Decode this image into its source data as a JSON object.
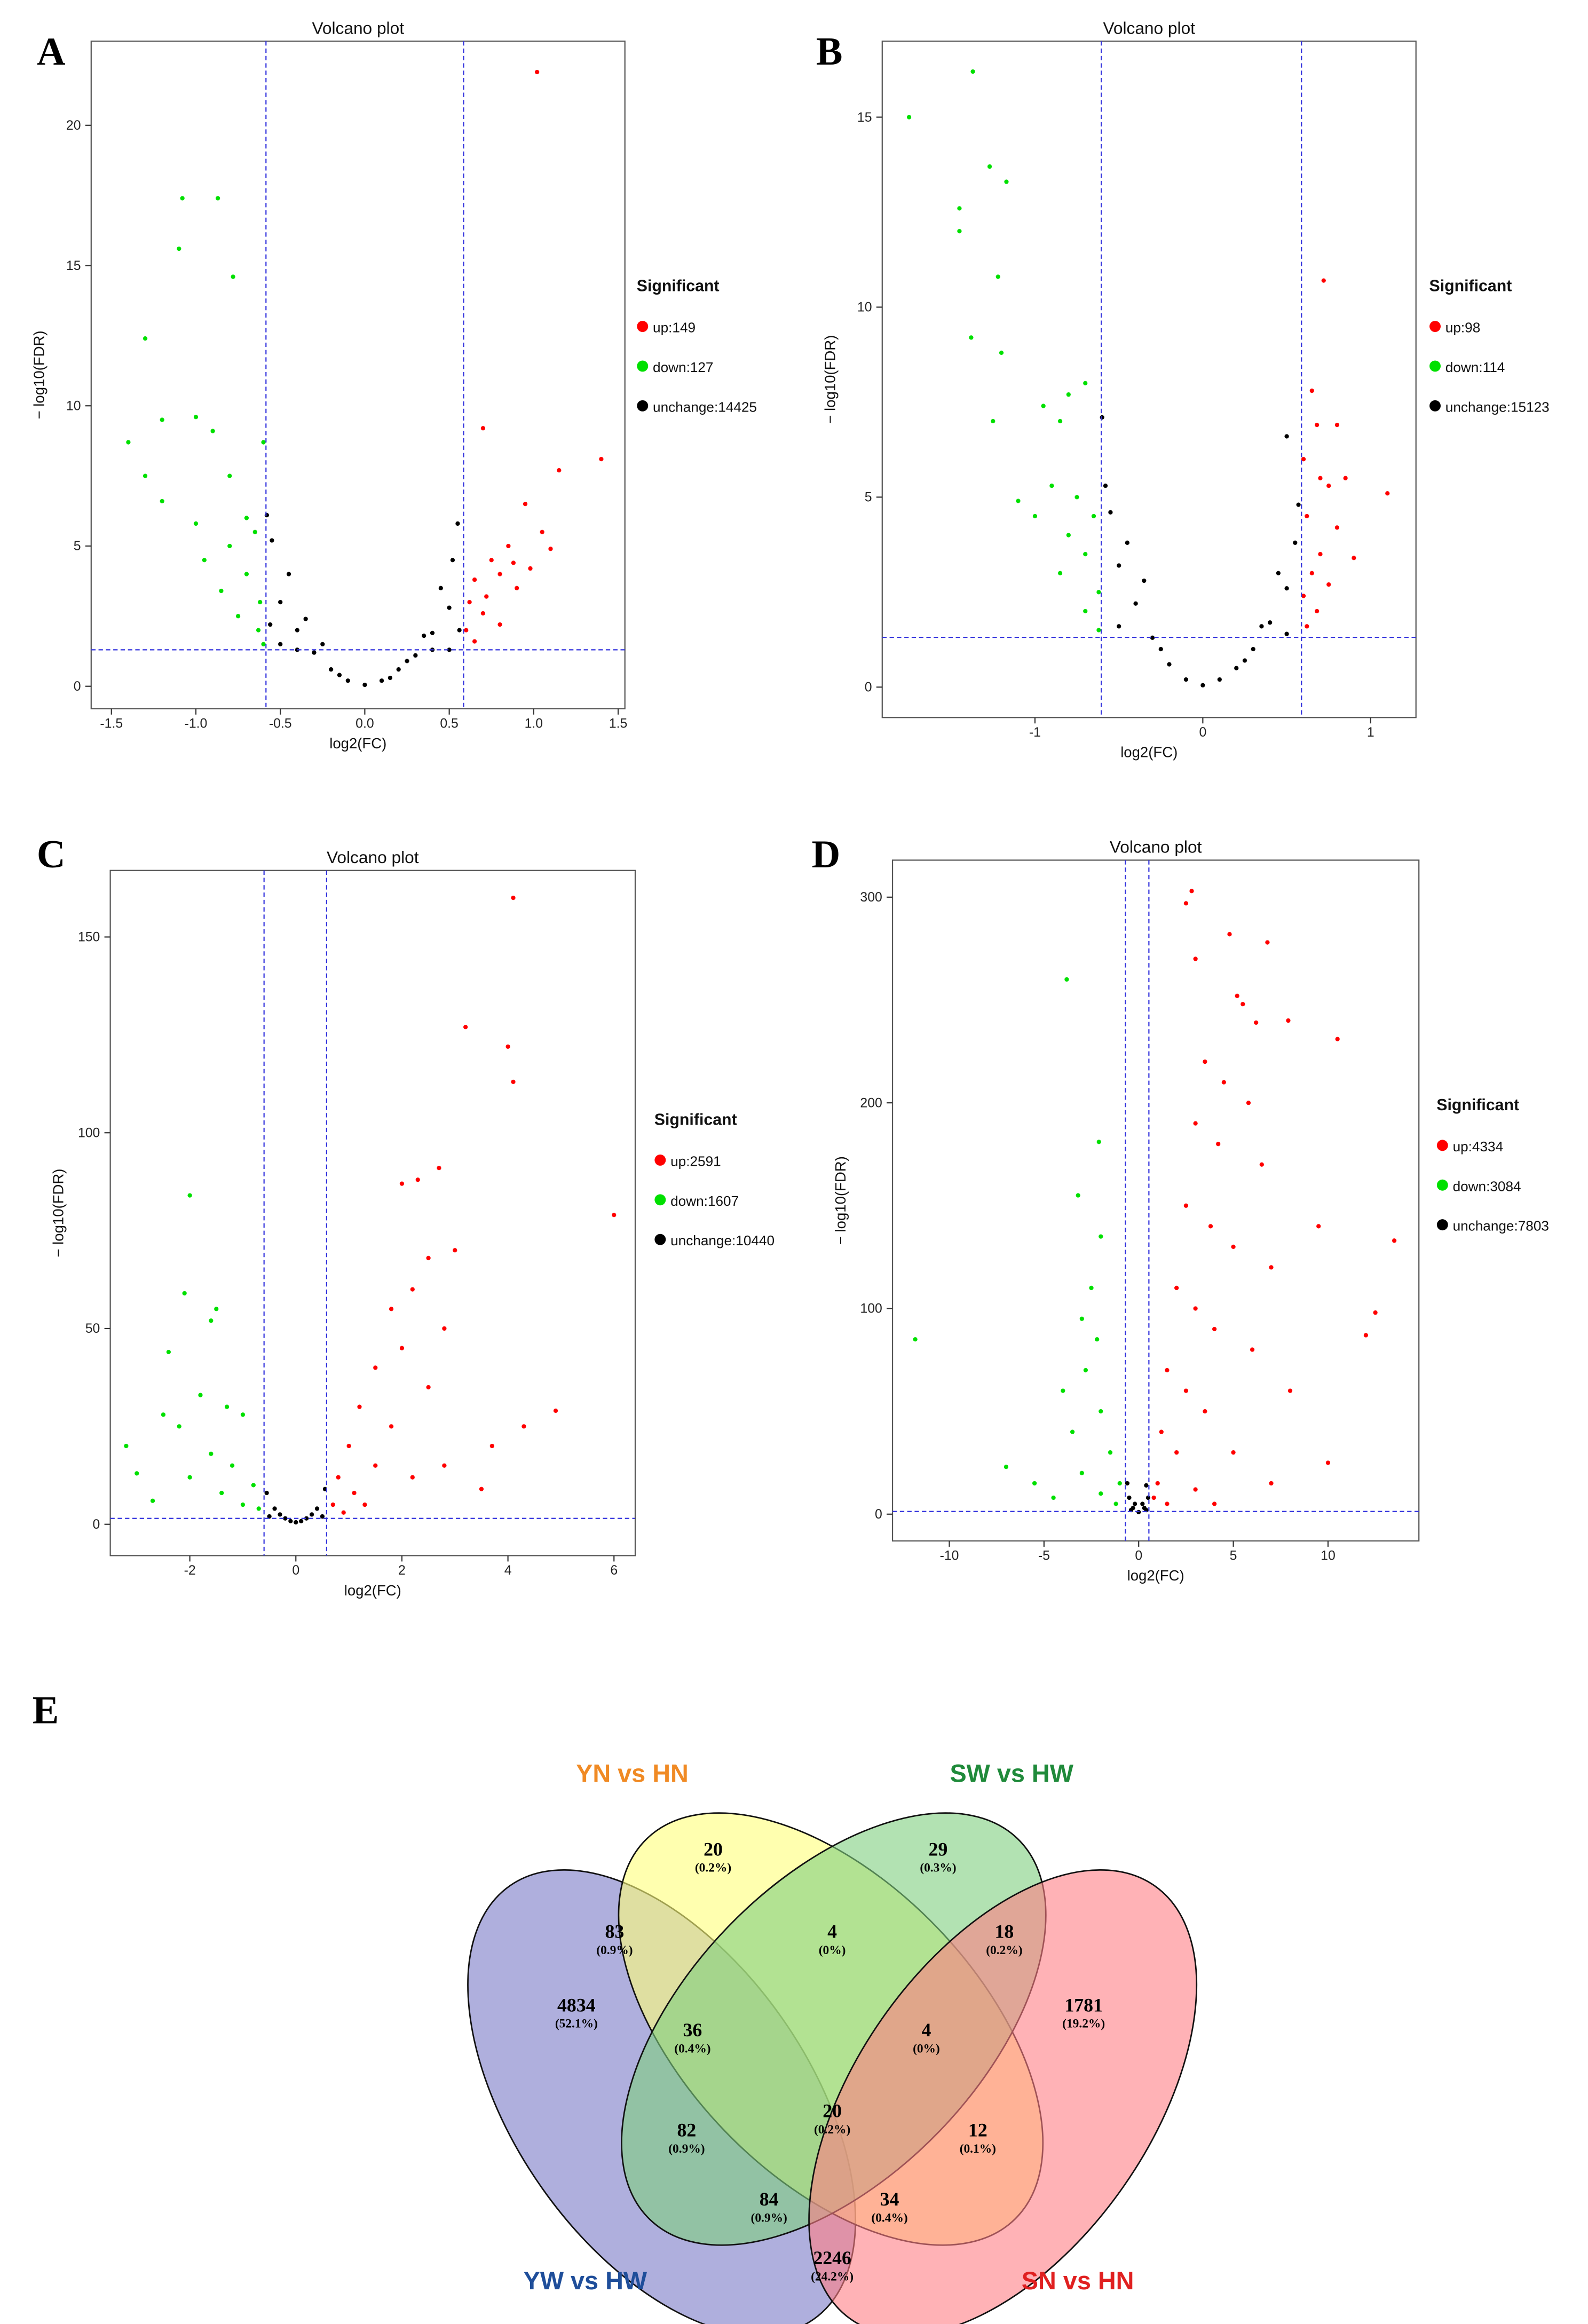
{
  "chart_data": [
    {
      "type": "scatter",
      "panel": "A",
      "title": "Volcano plot",
      "xlabel": "log2(FC)",
      "ylabel": "− log10(FDR)",
      "xlim": [
        -1.62,
        1.54
      ],
      "ylim": [
        -0.8,
        23
      ],
      "xticks": [
        -1.5,
        {
          "value": -1,
          "label": "-1.0"
        },
        -0.5,
        {
          "value": 0,
          "label": "0.0"
        },
        0.5,
        {
          "value": 1,
          "label": "1.0"
        },
        1.5
      ],
      "yticks": [
        0,
        5,
        10,
        15,
        20
      ],
      "thresholds": {
        "x": [
          -0.585,
          0.585
        ],
        "y": 1.3
      },
      "legend_title": "Significant",
      "series": [
        {
          "name": "up:149",
          "color": "#ff0000",
          "x": [
            1.02,
            0.7,
            1.4,
            1.15,
            0.95,
            1.05,
            0.85,
            1.1,
            0.75,
            0.8,
            0.65,
            0.9,
            0.62,
            0.7,
            0.6,
            0.65,
            0.8,
            0.98,
            0.88,
            0.72
          ],
          "y": [
            21.9,
            9.2,
            8.1,
            7.7,
            6.5,
            5.5,
            5.0,
            4.9,
            4.5,
            4.0,
            3.8,
            3.5,
            3.0,
            2.6,
            2.0,
            1.6,
            2.2,
            4.2,
            4.4,
            3.2
          ]
        },
        {
          "name": "down:127",
          "color": "#00e000",
          "x": [
            -1.08,
            -0.87,
            -1.1,
            -0.78,
            -1.3,
            -1.0,
            -1.2,
            -0.6,
            -1.4,
            -1.3,
            -0.9,
            -0.8,
            -1.2,
            -0.7,
            -1.0,
            -0.65,
            -0.8,
            -0.95,
            -0.7,
            -0.85,
            -0.62,
            -0.75,
            -0.63,
            -0.6
          ],
          "y": [
            17.4,
            17.4,
            15.6,
            14.6,
            12.4,
            9.6,
            9.5,
            8.7,
            8.7,
            7.5,
            9.1,
            7.5,
            6.6,
            6.0,
            5.8,
            5.5,
            5.0,
            4.5,
            4.0,
            3.4,
            3.0,
            2.5,
            2.0,
            1.5
          ]
        },
        {
          "name": "unchange:14425",
          "color": "#000000",
          "x": [
            0,
            -0.1,
            0.1,
            -0.2,
            0.2,
            -0.3,
            0.3,
            -0.4,
            0.4,
            -0.5,
            0.5,
            -0.55,
            0.52,
            -0.45,
            0.45,
            -0.58,
            0.55,
            -0.35,
            0.35,
            -0.25,
            0.25,
            -0.5,
            0.5,
            -0.15,
            0.15,
            -0.4,
            0.4,
            -0.56,
            0.56
          ],
          "y": [
            0.05,
            0.2,
            0.2,
            0.6,
            0.6,
            1.2,
            1.1,
            2.0,
            1.9,
            3.0,
            2.8,
            5.2,
            4.5,
            4.0,
            3.5,
            6.1,
            5.8,
            2.4,
            1.8,
            1.5,
            0.9,
            1.5,
            1.3,
            0.4,
            0.3,
            1.3,
            1.3,
            2.2,
            2.0
          ]
        }
      ]
    },
    {
      "type": "scatter",
      "panel": "B",
      "title": "Volcano plot",
      "xlabel": "log2(FC)",
      "ylabel": "− log10(FDR)",
      "xlim": [
        -1.91,
        1.27
      ],
      "ylim": [
        -0.8,
        17
      ],
      "xticks": [
        -1,
        0,
        1
      ],
      "yticks": [
        0,
        5,
        10,
        15
      ],
      "thresholds": {
        "x": [
          -0.605,
          0.588
        ],
        "y": 1.31
      },
      "legend_title": "Significant",
      "series": [
        {
          "name": "up:98",
          "color": "#ff0000",
          "x": [
            0.72,
            0.65,
            0.68,
            0.8,
            0.6,
            0.7,
            0.85,
            1.1,
            0.75,
            0.62,
            0.8,
            0.7,
            0.65,
            0.9,
            0.6,
            0.75,
            0.62,
            0.68
          ],
          "y": [
            10.7,
            7.8,
            6.9,
            6.9,
            6.0,
            5.5,
            5.5,
            5.1,
            5.3,
            4.5,
            4.2,
            3.5,
            3.0,
            3.4,
            2.4,
            2.7,
            1.6,
            2.0
          ]
        },
        {
          "name": "down:114",
          "color": "#00e000",
          "x": [
            -1.37,
            -1.75,
            -1.27,
            -1.17,
            -1.45,
            -1.45,
            -1.22,
            -1.38,
            -1.2,
            -0.8,
            -0.7,
            -0.95,
            -1.25,
            -0.85,
            -1.1,
            -0.9,
            -0.75,
            -1.0,
            -0.8,
            -0.65,
            -0.7,
            -0.85,
            -0.62,
            -0.7,
            -0.62
          ],
          "y": [
            16.2,
            15.0,
            13.7,
            13.3,
            12.6,
            12.0,
            10.8,
            9.2,
            8.8,
            7.7,
            8.0,
            7.4,
            7.0,
            7.0,
            4.9,
            5.3,
            5.0,
            4.5,
            4.0,
            4.5,
            3.5,
            3.0,
            2.5,
            2.0,
            1.5
          ]
        },
        {
          "name": "unchange:15123",
          "color": "#000000",
          "x": [
            0.5,
            -0.6,
            0,
            -0.1,
            0.1,
            -0.2,
            0.2,
            -0.3,
            0.3,
            -0.4,
            0.4,
            -0.5,
            0.5,
            -0.55,
            0.55,
            -0.45,
            0.45,
            -0.58,
            0.57,
            -0.35,
            0.35,
            -0.5,
            0.5,
            -0.25,
            0.25
          ],
          "y": [
            6.6,
            7.1,
            0.05,
            0.2,
            0.2,
            0.6,
            0.5,
            1.3,
            1.0,
            2.2,
            1.7,
            3.2,
            2.6,
            4.6,
            3.8,
            3.8,
            3.0,
            5.3,
            4.8,
            2.8,
            1.6,
            1.6,
            1.4,
            1.0,
            0.7
          ]
        }
      ]
    },
    {
      "type": "scatter",
      "panel": "C",
      "title": "Volcano plot",
      "xlabel": "log2(FC)",
      "ylabel": "− log10(FDR)",
      "xlim": [
        -3.5,
        6.4
      ],
      "ylim": [
        -8,
        167
      ],
      "xticks": [
        -2,
        0,
        2,
        4,
        6
      ],
      "yticks": [
        0,
        50,
        100,
        150
      ],
      "thresholds": {
        "x": [
          -0.6,
          0.58
        ],
        "y": 1.5
      },
      "legend_title": "Significant",
      "series": [
        {
          "name": "up:2591",
          "color": "#ff0000",
          "x": [
            4.1,
            3.2,
            4.0,
            4.1,
            6.0,
            2.7,
            2.3,
            2.0,
            3.0,
            2.5,
            2.2,
            1.8,
            2.8,
            4.9,
            4.3,
            3.7,
            2.0,
            1.5,
            2.5,
            1.2,
            1.8,
            1.0,
            1.5,
            0.8,
            1.1,
            2.2,
            0.7,
            1.3,
            2.8,
            0.9,
            3.5
          ],
          "y": [
            160,
            127,
            122,
            113,
            79,
            91,
            88,
            87,
            70,
            68,
            60,
            55,
            50,
            29,
            25,
            20,
            45,
            40,
            35,
            30,
            25,
            20,
            15,
            12,
            8,
            12,
            5,
            5,
            15,
            3,
            9
          ]
        },
        {
          "name": "down:1607",
          "color": "#00e000",
          "x": [
            -2.0,
            -2.1,
            -1.5,
            -1.6,
            -2.4,
            -3.2,
            -3.0,
            -2.5,
            -1.8,
            -1.3,
            -1.0,
            -2.2,
            -1.6,
            -1.2,
            -2.0,
            -0.8,
            -1.4,
            -0.7,
            -1.0,
            -2.7
          ],
          "y": [
            84,
            59,
            55,
            52,
            44,
            20,
            13,
            28,
            33,
            30,
            28,
            25,
            18,
            15,
            12,
            10,
            8,
            4,
            5,
            6
          ]
        },
        {
          "name": "unchange:10440",
          "color": "#000000",
          "x": [
            0,
            -0.2,
            0.2,
            -0.4,
            0.4,
            -0.55,
            0.55,
            -0.3,
            0.3,
            -0.5,
            0.5,
            -0.1,
            0.1
          ],
          "y": [
            0.5,
            1.5,
            1.5,
            4,
            4,
            8,
            9,
            2.5,
            2.5,
            2,
            2,
            0.8,
            0.8
          ]
        }
      ]
    },
    {
      "type": "scatter",
      "panel": "D",
      "title": "Volcano plot",
      "xlabel": "log2(FC)",
      "ylabel": "− log10(FDR)",
      "xlim": [
        -13,
        14.8
      ],
      "ylim": [
        -13,
        318
      ],
      "xticks": [
        -10,
        -5,
        0,
        5,
        10
      ],
      "yticks": [
        0,
        100,
        200,
        300
      ],
      "thresholds": {
        "x": [
          -0.7,
          0.54
        ],
        "y": 1.3
      },
      "legend_title": "Significant",
      "series": [
        {
          "name": "up:4334",
          "color": "#ff0000",
          "x": [
            2.8,
            2.5,
            4.8,
            6.8,
            3.0,
            5.2,
            5.5,
            7.9,
            6.2,
            10.5,
            3.5,
            4.5,
            5.8,
            3.0,
            4.2,
            6.5,
            9.5,
            13.5,
            2.5,
            3.8,
            5.0,
            7.0,
            2.0,
            3.0,
            4.0,
            12.5,
            12.0,
            6.0,
            1.5,
            2.5,
            8.0,
            3.5,
            1.2,
            2.0,
            5.0,
            10.0,
            1.0,
            3.0,
            7.0,
            1.5,
            4.0,
            0.8
          ],
          "y": [
            303,
            297,
            282,
            278,
            270,
            252,
            248,
            240,
            239,
            231,
            220,
            210,
            200,
            190,
            180,
            170,
            140,
            133,
            150,
            140,
            130,
            120,
            110,
            100,
            90,
            98,
            87,
            80,
            70,
            60,
            60,
            50,
            40,
            30,
            30,
            25,
            15,
            12,
            15,
            5,
            5,
            8
          ]
        },
        {
          "name": "down:3084",
          "color": "#00e000",
          "x": [
            -3.8,
            -2.1,
            -3.2,
            -2.0,
            -11.8,
            -2.5,
            -3.0,
            -2.2,
            -4.0,
            -2.8,
            -3.5,
            -2.0,
            -7.0,
            -5.5,
            -1.5,
            -3.0,
            -2.0,
            -1.2,
            -4.5,
            -1.0
          ],
          "y": [
            260,
            181,
            155,
            135,
            85,
            110,
            95,
            85,
            60,
            70,
            40,
            50,
            23,
            15,
            30,
            20,
            10,
            5,
            8,
            15
          ]
        },
        {
          "name": "unchange:7803",
          "color": "#000000",
          "x": [
            0,
            -0.3,
            0.3,
            -0.5,
            0.5,
            -0.6,
            0.4,
            -0.2,
            0.2,
            -0.4,
            0.4
          ],
          "y": [
            1,
            3,
            3,
            8,
            8,
            15,
            14,
            5,
            5,
            2,
            2
          ]
        }
      ]
    },
    {
      "type": "venn",
      "panel": "E",
      "sets": [
        {
          "name": "YW vs HW",
          "color": "#7a7ac6",
          "label_color": "#1f4e9a"
        },
        {
          "name": "YN vs HN",
          "color": "#ffff7a",
          "label_color": "#f08a24"
        },
        {
          "name": "SW vs HW",
          "color": "#7fcf7f",
          "label_color": "#1f8a3a"
        },
        {
          "name": "SN vs HN",
          "color": "#ff7f85",
          "label_color": "#e02020"
        }
      ],
      "regions": [
        {
          "value": 20,
          "percent_label": "(0.2%)"
        },
        {
          "value": 29,
          "percent_label": "(0.3%)"
        },
        {
          "value": 83,
          "percent_label": "(0.9%)"
        },
        {
          "value": 4,
          "percent_label": "(0%)"
        },
        {
          "value": 18,
          "percent_label": "(0.2%)"
        },
        {
          "value": 4834,
          "percent_label": "(52.1%)"
        },
        {
          "value": 36,
          "percent_label": "(0.4%)"
        },
        {
          "value": 4,
          "percent_label": "(0%)"
        },
        {
          "value": 1781,
          "percent_label": "(19.2%)"
        },
        {
          "value": 82,
          "percent_label": "(0.9%)"
        },
        {
          "value": 20,
          "percent_label": "(0.2%)"
        },
        {
          "value": 12,
          "percent_label": "(0.1%)"
        },
        {
          "value": 84,
          "percent_label": "(0.9%)"
        },
        {
          "value": 34,
          "percent_label": "(0.4%)"
        },
        {
          "value": 2246,
          "percent_label": "(24.2%)"
        }
      ]
    }
  ]
}
